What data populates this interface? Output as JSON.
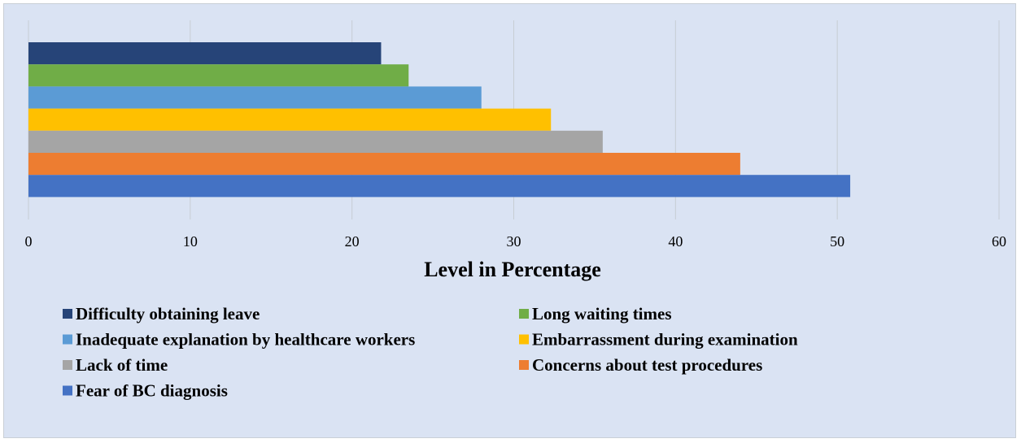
{
  "chart_data": {
    "type": "bar",
    "orientation": "horizontal",
    "title": "",
    "xlabel": "Level in Percentage",
    "ylabel": "",
    "xlim": [
      0,
      60
    ],
    "xticks": [
      0,
      10,
      20,
      30,
      40,
      50,
      60
    ],
    "grid": "vertical",
    "legend_position": "bottom",
    "series": [
      {
        "name": "Difficulty obtaining leave",
        "value": 21.8,
        "color": "#264478"
      },
      {
        "name": "Long waiting times",
        "value": 23.5,
        "color": "#70ad47"
      },
      {
        "name": "Inadequate explanation by healthcare workers",
        "value": 28.0,
        "color": "#5b9bd5"
      },
      {
        "name": "Embarrassment during examination",
        "value": 32.3,
        "color": "#ffc000"
      },
      {
        "name": "Lack of time",
        "value": 35.5,
        "color": "#a5a5a5"
      },
      {
        "name": "Concerns about test procedures",
        "value": 44.0,
        "color": "#ed7d31"
      },
      {
        "name": "Fear of BC diagnosis",
        "value": 50.8,
        "color": "#4472c4"
      }
    ]
  }
}
